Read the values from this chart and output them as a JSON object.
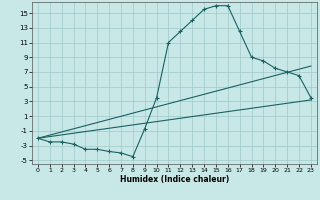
{
  "xlabel": "Humidex (Indice chaleur)",
  "bg_color": "#c8e8e8",
  "line_color": "#1a6060",
  "grid_color": "#a0c8c8",
  "xlim": [
    -0.5,
    23.5
  ],
  "ylim": [
    -5.5,
    16.5
  ],
  "xticks": [
    0,
    1,
    2,
    3,
    4,
    5,
    6,
    7,
    8,
    9,
    10,
    11,
    12,
    13,
    14,
    15,
    16,
    17,
    18,
    19,
    20,
    21,
    22,
    23
  ],
  "yticks": [
    -5,
    -3,
    -1,
    1,
    3,
    5,
    7,
    9,
    11,
    13,
    15
  ],
  "curve1_x": [
    0,
    1,
    2,
    3,
    4,
    5,
    6,
    7,
    8,
    9,
    10,
    11,
    12,
    13,
    14,
    15,
    16,
    17,
    18,
    19,
    20,
    21,
    22,
    23
  ],
  "curve1_y": [
    -2,
    -2.5,
    -2.5,
    -2.8,
    -3.5,
    -3.5,
    -3.8,
    -4.0,
    -4.5,
    -0.7,
    3.5,
    11,
    12.5,
    14,
    15.5,
    16,
    16,
    12.5,
    9,
    8.5,
    7.5,
    7,
    6.5,
    3.5
  ],
  "line2_x": [
    0,
    23
  ],
  "line2_y": [
    -2,
    3.2
  ],
  "line3_x": [
    0,
    23
  ],
  "line3_y": [
    -2,
    7.8
  ]
}
